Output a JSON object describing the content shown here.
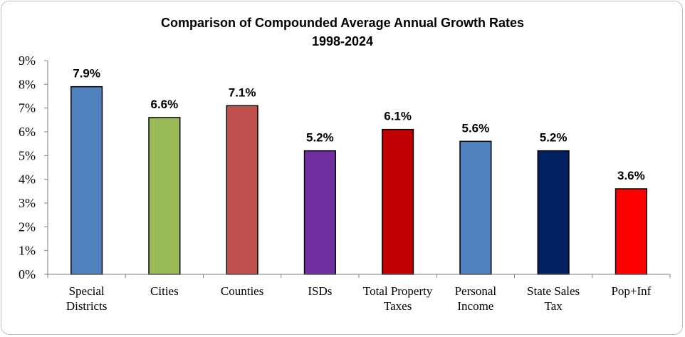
{
  "chart_data": {
    "type": "bar",
    "title": "Comparison of Compounded Average Annual Growth Rates",
    "subtitle": "1998-2024",
    "xlabel": "",
    "ylabel": "",
    "ylim": [
      0,
      9
    ],
    "y_ticks": [
      "0%",
      "1%",
      "2%",
      "3%",
      "4%",
      "5%",
      "6%",
      "7%",
      "8%",
      "9%"
    ],
    "grid": false,
    "categories": [
      [
        "Special",
        "Districts"
      ],
      [
        "Cities"
      ],
      [
        "Counties"
      ],
      [
        "ISDs"
      ],
      [
        "Total Property",
        "Taxes"
      ],
      [
        "Personal",
        "Income"
      ],
      [
        "State Sales",
        "Tax"
      ],
      [
        "Pop+Inf"
      ]
    ],
    "values": [
      7.9,
      6.6,
      7.1,
      5.2,
      6.1,
      5.6,
      5.2,
      3.6
    ],
    "data_labels": [
      "7.9%",
      "6.6%",
      "7.1%",
      "5.2%",
      "6.1%",
      "5.6%",
      "5.2%",
      "3.6%"
    ],
    "colors": [
      "#4f81bd",
      "#9bbb59",
      "#c0504d",
      "#7030a0",
      "#c00000",
      "#4f81bd",
      "#002060",
      "#ff0000"
    ]
  }
}
